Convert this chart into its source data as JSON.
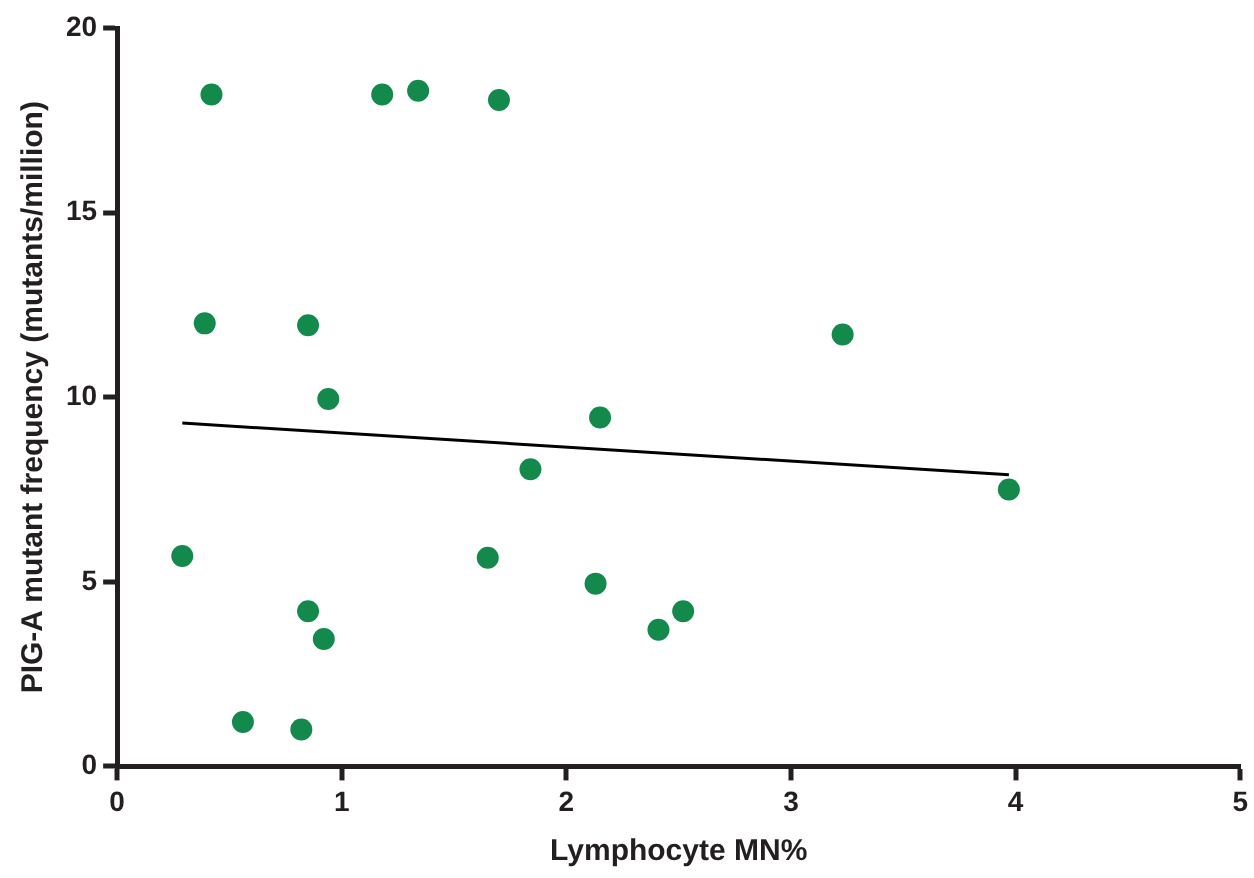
{
  "chart_data": {
    "type": "scatter",
    "xlabel": "Lymphocyte MN%",
    "ylabel": "PIG-A mutant frequency (mutants/million)",
    "xlim": [
      0,
      5
    ],
    "xticks": [
      0,
      1,
      2,
      3,
      4,
      5
    ],
    "ylim": [
      0,
      20
    ],
    "yticks": [
      0,
      5,
      10,
      15,
      20
    ],
    "grid": false,
    "legend": false,
    "marker": "circle",
    "series": [
      {
        "color": "#138a4c",
        "x": [
          0.42,
          1.18,
          1.34,
          1.7,
          0.39,
          0.85,
          0.94,
          1.84,
          0.29,
          1.65,
          0.85,
          0.92,
          0.56,
          0.82,
          3.23,
          3.97,
          2.15,
          2.13,
          2.41,
          2.52
        ],
        "values": [
          18.2,
          18.2,
          18.3,
          18.05,
          12,
          11.95,
          9.95,
          8.05,
          5.7,
          5.65,
          4.2,
          3.45,
          1.2,
          1,
          11.7,
          7.5,
          9.45,
          4.95,
          3.7,
          4.2
        ]
      },
      {
        "type": "line",
        "color": "#000000",
        "marker": "none",
        "x": [
          0.29,
          3.97
        ],
        "values": [
          9.3,
          7.9
        ]
      }
    ]
  }
}
